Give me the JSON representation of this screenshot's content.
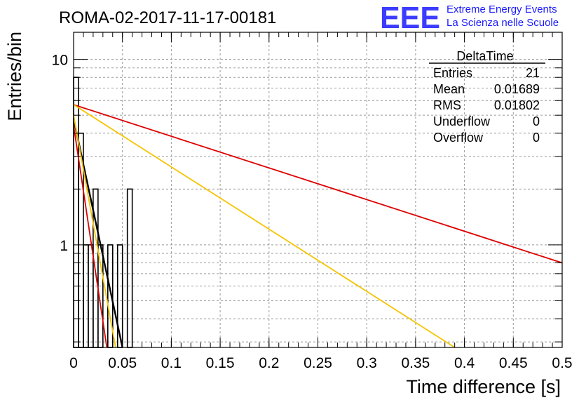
{
  "chart_data": {
    "type": "histogram",
    "title": "ROMA-02-2017-11-17-00181",
    "xlabel": "Time difference [s]",
    "ylabel": "Entries/bin",
    "xlim": [
      0,
      0.5
    ],
    "ylim": [
      0.28,
      14
    ],
    "yscale": "log",
    "grid": true,
    "x_ticks": [
      "0",
      "0.05",
      "0.1",
      "0.15",
      "0.2",
      "0.25",
      "0.3",
      "0.35",
      "0.4",
      "0.45",
      "0.5"
    ],
    "y_ticks": [
      "1",
      "10"
    ],
    "histogram": {
      "bin_width": 0.005,
      "bins": [
        {
          "x_low": 0.0,
          "x_high": 0.005,
          "count": 8
        },
        {
          "x_low": 0.005,
          "x_high": 0.01,
          "count": 4
        },
        {
          "x_low": 0.01,
          "x_high": 0.015,
          "count": 1
        },
        {
          "x_low": 0.015,
          "x_high": 0.02,
          "count": 1
        },
        {
          "x_low": 0.02,
          "x_high": 0.025,
          "count": 2
        },
        {
          "x_low": 0.025,
          "x_high": 0.03,
          "count": 1
        },
        {
          "x_low": 0.03,
          "x_high": 0.035,
          "count": 0
        },
        {
          "x_low": 0.035,
          "x_high": 0.04,
          "count": 1
        },
        {
          "x_low": 0.04,
          "x_high": 0.045,
          "count": 0
        },
        {
          "x_low": 0.045,
          "x_high": 0.05,
          "count": 1
        },
        {
          "x_low": 0.05,
          "x_high": 0.055,
          "count": 0
        },
        {
          "x_low": 0.055,
          "x_high": 0.06,
          "count": 2
        }
      ]
    },
    "fit_curves": [
      {
        "color": "#000000",
        "points": [
          [
            0.0,
            4.8
          ],
          [
            0.05,
            0.28
          ]
        ]
      },
      {
        "color": "#dd0000",
        "points": [
          [
            0.0,
            4.4
          ],
          [
            0.034,
            0.28
          ]
        ]
      },
      {
        "color": "#f5c400",
        "points": [
          [
            0.0,
            5.0
          ],
          [
            0.043,
            0.28
          ]
        ]
      },
      {
        "color": "#dd0000",
        "points": [
          [
            0.0,
            5.7
          ],
          [
            0.5,
            0.8
          ]
        ]
      },
      {
        "color": "#f5c400",
        "points": [
          [
            0.0,
            5.7
          ],
          [
            0.39,
            0.28
          ]
        ]
      }
    ]
  },
  "stats_box": {
    "title": "DeltaTime",
    "rows": [
      {
        "label": "Entries",
        "value": "21"
      },
      {
        "label": "Mean",
        "value": "0.01689"
      },
      {
        "label": "RMS",
        "value": "0.01802"
      },
      {
        "label": "Underflow",
        "value": "0"
      },
      {
        "label": "Overflow",
        "value": "0"
      }
    ]
  },
  "logo": {
    "text": "EEE",
    "line1": "Extreme Energy Events",
    "line2": "La Scienza nelle Scuole",
    "color": "#1a1aff"
  }
}
